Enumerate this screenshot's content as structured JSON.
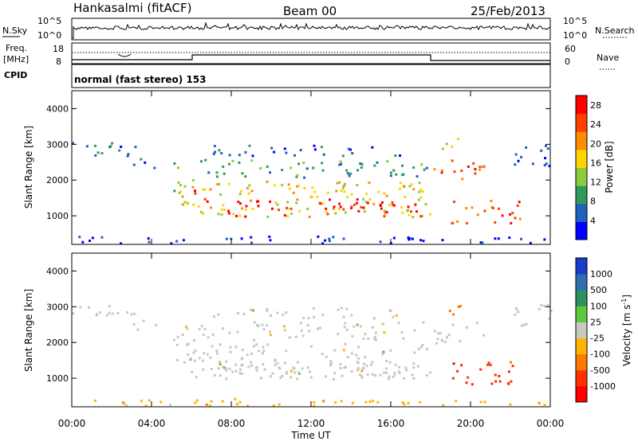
{
  "header": {
    "site": "Hankasalmi (fitACF)",
    "beam": "Beam 00",
    "date": "25/Feb/2013"
  },
  "noise_panel": {
    "left_label": "N.Sky",
    "right_label": "N.Search",
    "left_ticks": [
      "10^5",
      "10^0"
    ],
    "right_ticks": [
      "10^5",
      "10^0"
    ]
  },
  "freq_panel": {
    "left_label_1": "Freq.",
    "left_label_2": "[MHz]",
    "cpid_label": "CPID",
    "right_label": "Nave",
    "left_ticks": [
      "18",
      "8"
    ],
    "right_ticks": [
      "60",
      "0"
    ],
    "cpid_text": "normal (fast stereo) 153"
  },
  "chart_data": [
    {
      "type": "heatmap",
      "parameter": "Power",
      "ylabel": "Slant Range [km]",
      "xlabel": "Time UT",
      "xlim": [
        "00:00",
        "24:00"
      ],
      "x_ticks": [
        "00:00",
        "04:00",
        "08:00",
        "12:00",
        "16:00",
        "20:00",
        "00:00"
      ],
      "ylim": [
        200,
        4500
      ],
      "y_ticks": [
        "1000",
        "2000",
        "3000",
        "4000"
      ],
      "colorbar": {
        "label": "Power [dB]",
        "ticks": [
          "4",
          "8",
          "12",
          "16",
          "20",
          "24",
          "28"
        ],
        "range": [
          0,
          30
        ],
        "colors": [
          "#0000ff",
          "#2060c0",
          "#2e9a5a",
          "#8ccc3c",
          "#ffd400",
          "#ff8c00",
          "#ff4000",
          "#ff0000"
        ]
      }
    },
    {
      "type": "heatmap",
      "parameter": "Velocity",
      "ylabel": "Slant Range [km]",
      "xlabel": "Time UT",
      "xlim": [
        "00:00",
        "24:00"
      ],
      "x_ticks": [
        "00:00",
        "04:00",
        "08:00",
        "12:00",
        "16:00",
        "20:00",
        "00:00"
      ],
      "ylim": [
        200,
        4500
      ],
      "y_ticks": [
        "1000",
        "2000",
        "3000",
        "4000"
      ],
      "colorbar": {
        "label": "Velocity [m s",
        "label_sup": "-1",
        "label_end": "]",
        "ticks": [
          "1000",
          "500",
          "100",
          "25",
          "-25",
          "-100",
          "-500",
          "-1000"
        ],
        "colors": [
          "#1a3cc8",
          "#2f6fb0",
          "#2e9060",
          "#5cc840",
          "#c8c8c0",
          "#ffb400",
          "#ff7800",
          "#ff3000",
          "#ff0000"
        ]
      }
    }
  ]
}
